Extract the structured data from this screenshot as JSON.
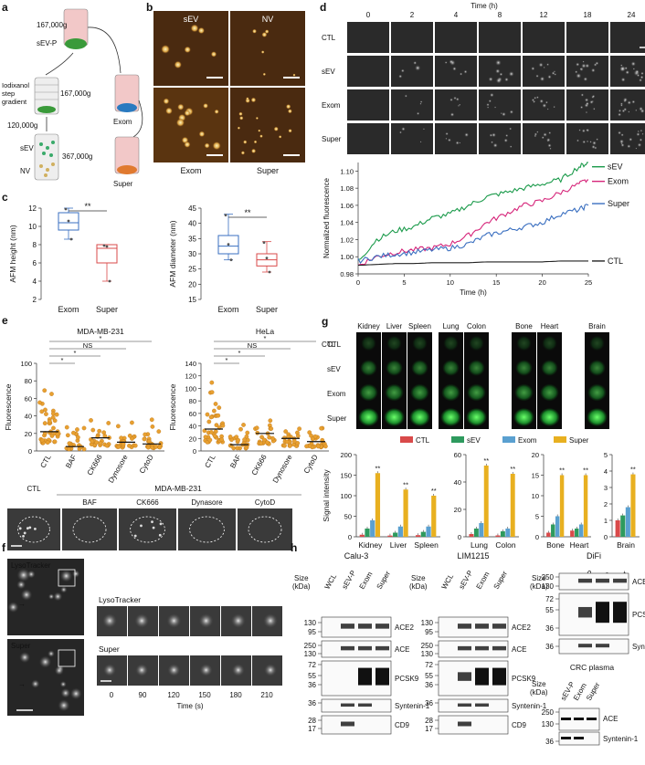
{
  "panels": {
    "a": {
      "letter": "a",
      "g1": "167,000g",
      "svp": "sEV-P",
      "iodix1": "Iodixanol",
      "iodix2": "step",
      "iodix3": "gradient",
      "g2": "167,000g",
      "g3": "120,000g",
      "sev": "sEV",
      "nv": "NV",
      "g4": "367,000g",
      "exom": "Exom",
      "super": "Super"
    },
    "b": {
      "letter": "b",
      "sev": "sEV",
      "nv": "NV",
      "exom": "Exom",
      "super": "Super"
    },
    "c": {
      "letter": "c",
      "ylab1": "AFM height (nm)",
      "ylab2": "AFM diameter (nm)",
      "exom": "Exom",
      "super": "Super",
      "sig": "**",
      "yt1": [
        "12",
        "10",
        "8",
        "6",
        "4",
        "2"
      ],
      "yt2": [
        "45",
        "40",
        "35",
        "30",
        "25",
        "20",
        "15"
      ]
    },
    "d": {
      "letter": "d",
      "time_title": "Time (h)",
      "times": [
        "0",
        "2",
        "4",
        "8",
        "12",
        "18",
        "24"
      ],
      "rows": [
        "CTL",
        "sEV",
        "Exom",
        "Super"
      ],
      "ylab": "Normalized fluorescence",
      "xlab": "Time (h)",
      "yt": [
        "1.10",
        "1.08",
        "1.06",
        "1.04",
        "1.02",
        "1.00",
        "0.98"
      ],
      "xt": [
        "0",
        "5",
        "10",
        "15",
        "20",
        "25"
      ],
      "leg": [
        "sEV",
        "Exom",
        "Super",
        "CTL"
      ]
    },
    "e": {
      "letter": "e",
      "t1": "MDA-MB-231",
      "t2": "HeLa",
      "ylab": "Fluorescence",
      "xcats": [
        "CTL",
        "BAF",
        "CK666",
        "Dynosore",
        "CytoD"
      ],
      "yt1": [
        "100",
        "80",
        "60",
        "40",
        "20",
        "0"
      ],
      "yt2": [
        "140",
        "120",
        "100",
        "80",
        "60",
        "40",
        "20",
        "0"
      ],
      "sig": [
        "*",
        "*",
        "NS",
        "*"
      ],
      "img_title": "MDA-MB-231",
      "imgs": [
        "CTL",
        "BAF",
        "CK666",
        "Dynasore",
        "CytoD"
      ]
    },
    "f": {
      "letter": "f",
      "lyso": "LysoTracker",
      "super": "Super",
      "times": [
        "0",
        "90",
        "120",
        "150",
        "180",
        "210"
      ],
      "xlab": "Time (s)"
    },
    "g": {
      "letter": "g",
      "organs": [
        "Kidney",
        "Liver",
        "Spleen",
        "Lung",
        "Colon",
        "Bone",
        "Heart",
        "Brain"
      ],
      "rows": [
        "CTL",
        "sEV",
        "Exom",
        "Super"
      ],
      "leg": [
        "CTL",
        "sEV",
        "Exom",
        "Super"
      ],
      "ylab": "Signal intensity",
      "yt1": [
        "200",
        "150",
        "100",
        "50",
        "0"
      ],
      "yt2": [
        "60",
        "40",
        "20",
        "0"
      ],
      "yt3": [
        "20",
        "15",
        "10",
        "5",
        "0"
      ],
      "yt4": [
        "5",
        "4",
        "3",
        "2",
        "1",
        "0"
      ],
      "sig": "**"
    },
    "h": {
      "letter": "h",
      "blot1": "Calu-3",
      "blot2": "LIM1215",
      "blot3": "DiFi",
      "blot4": "CRC plasma",
      "size": "Size",
      "kda": "(kDa)",
      "lanes": [
        "WCL",
        "sEV-P",
        "Exom",
        "Super"
      ],
      "lanes3": [
        "sEV-P",
        "Exom",
        "Super"
      ],
      "m1": [
        "130",
        "95",
        "250",
        "130",
        "72",
        "55",
        "36",
        "36",
        "28",
        "17"
      ],
      "m2": [
        "130",
        "95",
        "250",
        "130",
        "72",
        "55",
        "36",
        "36",
        "28",
        "17"
      ],
      "m3": [
        "250",
        "130",
        "72",
        "55",
        "36",
        "36"
      ],
      "m4": [
        "250",
        "130",
        "36"
      ],
      "p1": [
        "ACE2",
        "ACE",
        "PCSK9",
        "Syntenin-1",
        "CD9"
      ],
      "p2": [
        "ACE2",
        "ACE",
        "PCSK9",
        "Syntenin-1",
        "CD9"
      ],
      "p3": [
        "ACE2",
        "PCSK9",
        "Syntenin-1"
      ],
      "p4": [
        "ACE",
        "Syntenin-1"
      ]
    }
  },
  "colors": {
    "sev": "#1a9a4a",
    "exom": "#d6257a",
    "super": "#3a6fc0",
    "ctl": "#222222",
    "bar_ctl": "#d94a4a",
    "bar_sev": "#2e9a5e",
    "bar_exom": "#5aa0d0",
    "bar_super": "#e8b020",
    "box_exom": "#3a6fc0",
    "box_super": "#d94a4a",
    "dot": "#e8a030"
  },
  "chart_data": [
    {
      "type": "box",
      "panel": "c-left",
      "categories": [
        "Exom",
        "Super"
      ],
      "ylabel": "AFM height (nm)",
      "ylim": [
        2,
        12
      ],
      "stats": [
        {
          "name": "Exom",
          "min": 8.6,
          "q1": 9.6,
          "median": 10.4,
          "q3": 11.5,
          "max": 12.0
        },
        {
          "name": "Super",
          "min": 4.0,
          "q1": 6.0,
          "median": 7.6,
          "q3": 8.0,
          "max": 8.0
        }
      ]
    },
    {
      "type": "box",
      "panel": "c-right",
      "categories": [
        "Exom",
        "Super"
      ],
      "ylabel": "AFM diameter (nm)",
      "ylim": [
        15,
        45
      ],
      "stats": [
        {
          "name": "Exom",
          "min": 28,
          "q1": 30,
          "median": 32.5,
          "q3": 36,
          "max": 43
        },
        {
          "name": "Super",
          "min": 24,
          "q1": 26,
          "median": 28,
          "q3": 30,
          "max": 34
        }
      ]
    },
    {
      "type": "line",
      "panel": "d",
      "xlabel": "Time (h)",
      "ylabel": "Normalized fluorescence",
      "xlim": [
        0,
        25
      ],
      "ylim": [
        0.98,
        1.11
      ],
      "x": [
        0,
        2,
        4,
        6,
        8,
        10,
        12,
        14,
        16,
        18,
        20,
        22,
        24,
        25
      ],
      "series": [
        {
          "name": "sEV",
          "values": [
            0.995,
            1.02,
            1.03,
            1.035,
            1.045,
            1.05,
            1.06,
            1.07,
            1.075,
            1.08,
            1.085,
            1.09,
            1.105,
            1.11
          ]
        },
        {
          "name": "Exom",
          "values": [
            0.99,
            1.0,
            1.005,
            1.008,
            1.01,
            1.015,
            1.025,
            1.04,
            1.05,
            1.06,
            1.065,
            1.075,
            1.085,
            1.09
          ]
        },
        {
          "name": "Super",
          "values": [
            0.995,
            1.0,
            1.003,
            1.005,
            1.008,
            1.01,
            1.015,
            1.025,
            1.03,
            1.035,
            1.04,
            1.05,
            1.055,
            1.06
          ]
        },
        {
          "name": "CTL",
          "values": [
            0.99,
            0.991,
            0.992,
            0.992,
            0.993,
            0.993,
            0.993,
            0.994,
            0.994,
            0.994,
            0.994,
            0.995,
            0.995,
            0.995
          ]
        }
      ]
    },
    {
      "type": "scatter",
      "panel": "e-left",
      "categories": [
        "CTL",
        "BAF",
        "CK666",
        "Dynosore",
        "CytoD"
      ],
      "ylabel": "Fluorescence",
      "ylim": [
        0,
        100
      ],
      "medians": [
        22,
        5,
        15,
        10,
        8
      ]
    },
    {
      "type": "scatter",
      "panel": "e-right",
      "categories": [
        "CTL",
        "BAF",
        "CK666",
        "Dynosore",
        "CytoD"
      ],
      "ylabel": "Fluorescence",
      "ylim": [
        0,
        140
      ],
      "medians": [
        35,
        10,
        28,
        20,
        15
      ]
    },
    {
      "type": "bar",
      "panel": "g",
      "ylabel": "Signal intensity",
      "groups": [
        {
          "categories": [
            "Kidney",
            "Liver",
            "Spleen"
          ],
          "ylim": [
            0,
            200
          ],
          "series": [
            {
              "name": "CTL",
              "values": [
                5,
                3,
                4
              ]
            },
            {
              "name": "sEV",
              "values": [
                20,
                10,
                12
              ]
            },
            {
              "name": "Exom",
              "values": [
                40,
                25,
                25
              ]
            },
            {
              "name": "Super",
              "values": [
                155,
                115,
                100
              ]
            }
          ]
        },
        {
          "categories": [
            "Lung",
            "Colon"
          ],
          "ylim": [
            0,
            60
          ],
          "series": [
            {
              "name": "CTL",
              "values": [
                2,
                1
              ]
            },
            {
              "name": "sEV",
              "values": [
                6,
                4
              ]
            },
            {
              "name": "Exom",
              "values": [
                10,
                6
              ]
            },
            {
              "name": "Super",
              "values": [
                52,
                46
              ]
            }
          ]
        },
        {
          "categories": [
            "Bone",
            "Heart"
          ],
          "ylim": [
            0,
            20
          ],
          "series": [
            {
              "name": "CTL",
              "values": [
                1,
                1.5
              ]
            },
            {
              "name": "sEV",
              "values": [
                3,
                2
              ]
            },
            {
              "name": "Exom",
              "values": [
                5,
                3
              ]
            },
            {
              "name": "Super",
              "values": [
                15,
                15
              ]
            }
          ]
        },
        {
          "categories": [
            "Brain"
          ],
          "ylim": [
            0,
            5
          ],
          "series": [
            {
              "name": "CTL",
              "values": [
                1
              ]
            },
            {
              "name": "sEV",
              "values": [
                1.3
              ]
            },
            {
              "name": "Exom",
              "values": [
                1.8
              ]
            },
            {
              "name": "Super",
              "values": [
                3.8
              ]
            }
          ]
        }
      ]
    }
  ]
}
